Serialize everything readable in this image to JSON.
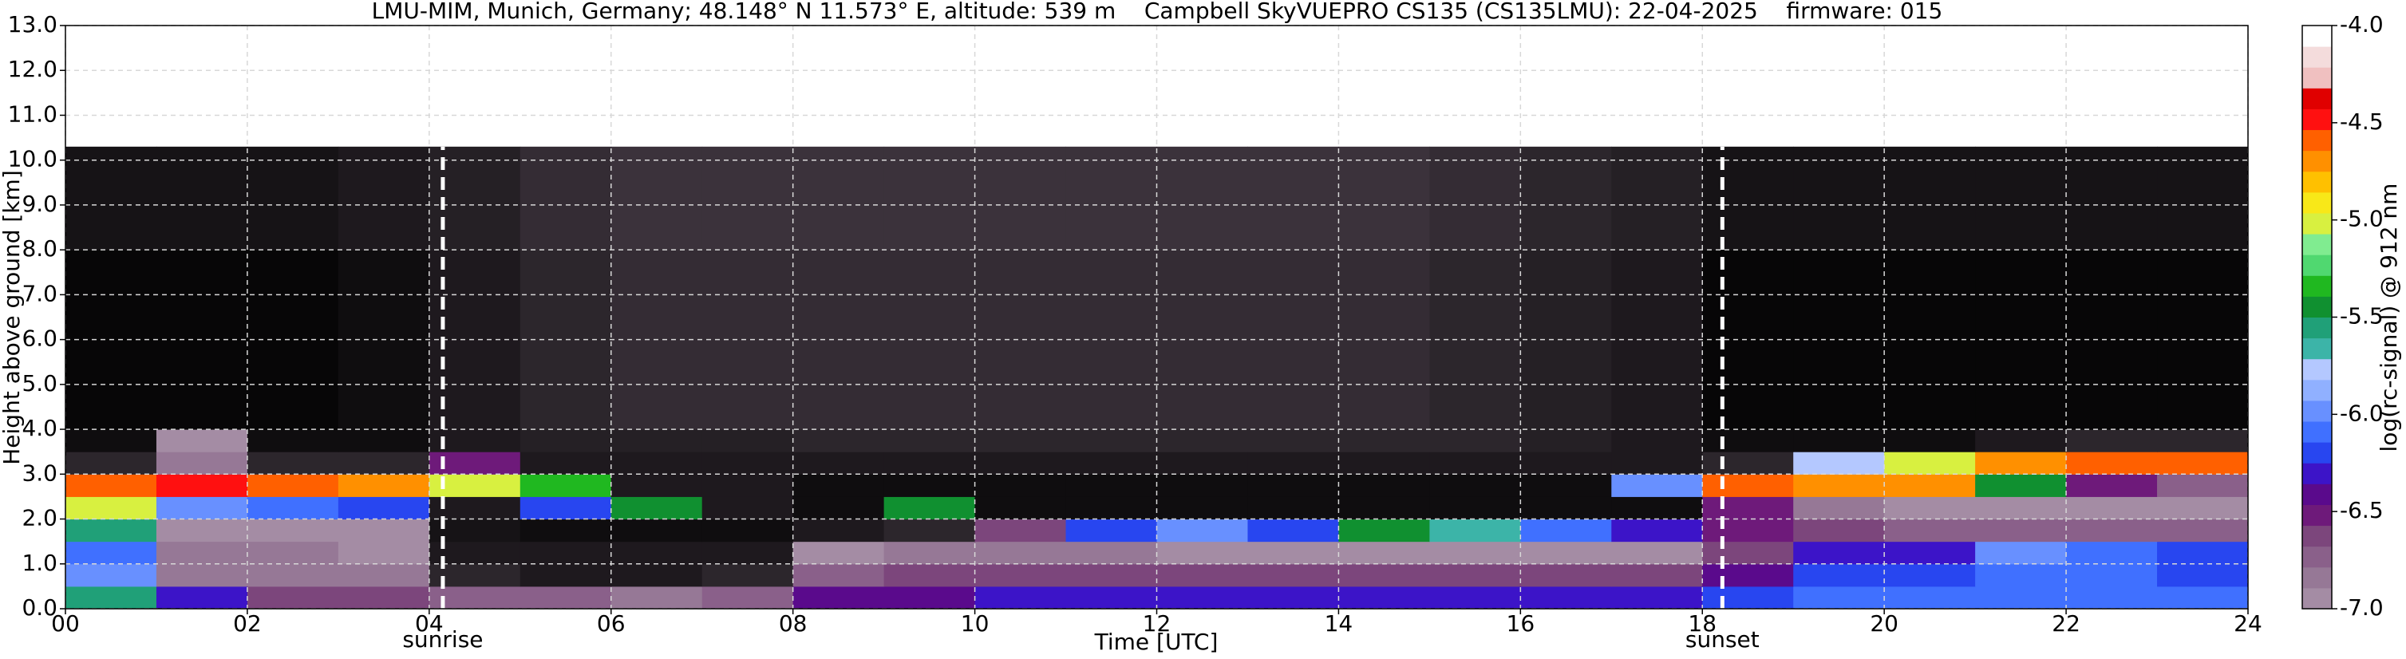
{
  "chart_data": {
    "type": "heatmap",
    "title": "LMU-MIM, Munich, Germany; 48.148° N 11.573° E, altitude: 539 m    Campbell SkyVUEPRO CS135 (CS135LMU): 22-04-2025    firmware: 015",
    "xlabel": "Time [UTC]",
    "ylabel": "Height above ground [km]",
    "colorbar_label": "log(rc-signal) @ 912 nm",
    "xlim": [
      0,
      24
    ],
    "ylim": [
      0,
      13
    ],
    "xticks": [
      {
        "value": 0,
        "label": "00"
      },
      {
        "value": 2,
        "label": "02"
      },
      {
        "value": 4,
        "label": "04"
      },
      {
        "value": 6,
        "label": "06"
      },
      {
        "value": 8,
        "label": "08"
      },
      {
        "value": 10,
        "label": "10"
      },
      {
        "value": 12,
        "label": "12"
      },
      {
        "value": 14,
        "label": "14"
      },
      {
        "value": 16,
        "label": "16"
      },
      {
        "value": 18,
        "label": "18"
      },
      {
        "value": 20,
        "label": "20"
      },
      {
        "value": 22,
        "label": "22"
      },
      {
        "value": 24,
        "label": "24"
      }
    ],
    "yticks": [
      {
        "value": 0,
        "label": "0.0"
      },
      {
        "value": 1,
        "label": "1.0"
      },
      {
        "value": 2,
        "label": "2.0"
      },
      {
        "value": 3,
        "label": "3.0"
      },
      {
        "value": 4,
        "label": "4.0"
      },
      {
        "value": 5,
        "label": "5.0"
      },
      {
        "value": 6,
        "label": "6.0"
      },
      {
        "value": 7,
        "label": "7.0"
      },
      {
        "value": 8,
        "label": "8.0"
      },
      {
        "value": 9,
        "label": "9.0"
      },
      {
        "value": 10,
        "label": "10.0"
      },
      {
        "value": 11,
        "label": "11.0"
      },
      {
        "value": 12,
        "label": "12.0"
      },
      {
        "value": 13,
        "label": "13.0"
      }
    ],
    "clim": [
      -7,
      -4
    ],
    "cticks": [
      {
        "value": -7,
        "label": "-7.0"
      },
      {
        "value": -6.5,
        "label": "-6.5"
      },
      {
        "value": -6,
        "label": "-6.0"
      },
      {
        "value": -5.5,
        "label": "-5.5"
      },
      {
        "value": -5,
        "label": "-5.0"
      },
      {
        "value": -4.5,
        "label": "-4.5"
      },
      {
        "value": -4,
        "label": "-4.0"
      }
    ],
    "colormap": [
      "#a48ca4",
      "#967896",
      "#8a608a",
      "#7c467c",
      "#6e1a7a",
      "#5a0a8c",
      "#3c14c8",
      "#2846f0",
      "#4070ff",
      "#6890ff",
      "#90b0ff",
      "#b4c8ff",
      "#3cb4a8",
      "#20a078",
      "#109030",
      "#20b820",
      "#50d870",
      "#80ec90",
      "#d8f040",
      "#f8e818",
      "#ffc000",
      "#ff9000",
      "#ff6000",
      "#ff1010",
      "#e00000",
      "#f0c0c0",
      "#f4dcdc",
      "#ffffff"
    ],
    "under_color": "#000000",
    "grid": true,
    "x_edges": [
      0,
      1,
      2,
      3,
      4,
      5,
      6,
      7,
      8,
      9,
      10,
      11,
      12,
      13,
      14,
      15,
      16,
      17,
      18,
      19,
      20,
      21,
      22,
      23,
      24
    ],
    "y_edges": [
      0,
      0.5,
      1,
      1.5,
      2,
      2.5,
      3,
      3.5,
      4,
      6,
      8,
      10.3
    ],
    "values": [
      [
        -5.6,
        -6.3,
        -6.6,
        -6.6,
        -6.7,
        -6.7,
        -6.8,
        -6.7,
        -6.4,
        -6.4,
        -6.3,
        -6.3,
        -6.3,
        -6.3,
        -6.3,
        -6.3,
        -6.3,
        -6.3,
        -6.2,
        -6.1,
        -6.1,
        -6.1,
        -6.1,
        -6.1
      ],
      [
        -6.0,
        -6.8,
        -6.8,
        -6.8,
        -7.2,
        -7.3,
        -7.3,
        -7.2,
        -6.7,
        -6.6,
        -6.6,
        -6.6,
        -6.6,
        -6.6,
        -6.6,
        -6.6,
        -6.6,
        -6.6,
        -6.4,
        -6.2,
        -6.2,
        -6.1,
        -6.1,
        -6.2
      ],
      [
        -6.1,
        -6.85,
        -6.85,
        -6.9,
        -7.3,
        -7.3,
        -7.3,
        -7.3,
        -6.9,
        -6.8,
        -6.8,
        -6.8,
        -6.9,
        -6.9,
        -6.9,
        -6.9,
        -6.9,
        -6.9,
        -6.6,
        -6.3,
        -6.3,
        -6.0,
        -6.1,
        -6.2
      ],
      [
        -5.6,
        -6.9,
        -6.9,
        -6.9,
        -7.35,
        -7.4,
        -7.4,
        -7.4,
        -7.3,
        -7.2,
        -6.6,
        -6.2,
        -6.0,
        -6.2,
        -5.5,
        -5.7,
        -6.1,
        -6.3,
        -6.5,
        -6.6,
        -6.7,
        -6.7,
        -6.7,
        -6.7
      ],
      [
        -5.0,
        -6.0,
        -6.1,
        -6.2,
        -7.3,
        -6.2,
        -5.5,
        -7.3,
        -7.4,
        -5.5,
        -7.4,
        -7.4,
        -7.4,
        -7.4,
        -7.4,
        -7.4,
        -7.4,
        -7.4,
        -6.5,
        -6.8,
        -6.9,
        -6.9,
        -6.9,
        -6.9
      ],
      [
        -4.6,
        -4.5,
        -4.6,
        -4.7,
        -5.0,
        -5.3,
        -7.3,
        -7.3,
        -7.4,
        -7.4,
        -7.4,
        -7.4,
        -7.4,
        -7.4,
        -7.4,
        -7.4,
        -7.4,
        -6.0,
        -4.6,
        -4.7,
        -4.7,
        -5.5,
        -6.5,
        -6.7
      ],
      [
        -7.2,
        -6.8,
        -7.2,
        -7.2,
        -6.5,
        -7.3,
        -7.3,
        -7.3,
        -7.3,
        -7.3,
        -7.3,
        -7.3,
        -7.3,
        -7.3,
        -7.3,
        -7.3,
        -7.3,
        -7.3,
        -7.2,
        -5.8,
        -5.0,
        -4.7,
        -4.6,
        -4.6
      ],
      [
        -7.4,
        -7.0,
        -7.4,
        -7.4,
        -7.3,
        -7.25,
        -7.25,
        -7.25,
        -7.2,
        -7.2,
        -7.2,
        -7.2,
        -7.2,
        -7.2,
        -7.2,
        -7.2,
        -7.25,
        -7.3,
        -7.4,
        -7.4,
        -7.4,
        -7.3,
        -7.2,
        -7.2
      ],
      [
        -7.45,
        -7.45,
        -7.45,
        -7.4,
        -7.3,
        -7.2,
        -7.15,
        -7.15,
        -7.15,
        -7.15,
        -7.15,
        -7.15,
        -7.15,
        -7.15,
        -7.15,
        -7.2,
        -7.25,
        -7.3,
        -7.45,
        -7.45,
        -7.45,
        -7.45,
        -7.45,
        -7.45
      ],
      [
        -7.45,
        -7.45,
        -7.45,
        -7.4,
        -7.3,
        -7.2,
        -7.15,
        -7.15,
        -7.15,
        -7.15,
        -7.15,
        -7.15,
        -7.15,
        -7.15,
        -7.15,
        -7.2,
        -7.25,
        -7.3,
        -7.45,
        -7.45,
        -7.45,
        -7.45,
        -7.45,
        -7.45
      ],
      [
        -7.35,
        -7.35,
        -7.35,
        -7.3,
        -7.25,
        -7.15,
        -7.1,
        -7.1,
        -7.1,
        -7.1,
        -7.1,
        -7.1,
        -7.1,
        -7.1,
        -7.1,
        -7.15,
        -7.2,
        -7.25,
        -7.35,
        -7.35,
        -7.35,
        -7.35,
        -7.35,
        -7.35
      ]
    ],
    "annotations": [
      {
        "text": "sunrise",
        "x": 4.15
      },
      {
        "text": "sunset",
        "x": 18.22
      }
    ]
  }
}
